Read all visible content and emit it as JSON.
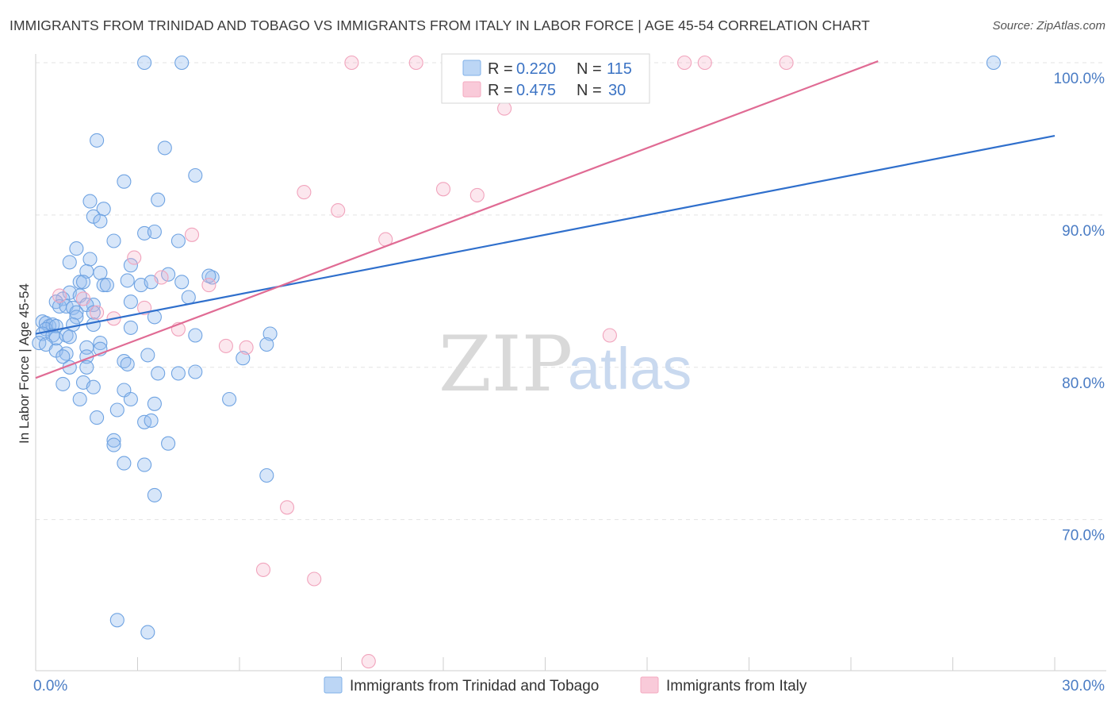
{
  "header": {
    "title": "IMMIGRANTS FROM TRINIDAD AND TOBAGO VS IMMIGRANTS FROM ITALY IN LABOR FORCE | AGE 45-54 CORRELATION CHART",
    "source": "Source: ZipAtlas.com"
  },
  "watermark": {
    "zip": "ZIP",
    "atlas": "atlas"
  },
  "legend": {
    "rows": [
      {
        "r_label": "R = ",
        "r_value": "0.220",
        "n_label": "N = ",
        "n_value": "115"
      },
      {
        "r_label": "R = ",
        "r_value": "0.475",
        "n_label": "N = ",
        "n_value": "30"
      }
    ]
  },
  "chart_data": {
    "type": "scatter",
    "ylabel": "In Labor Force | Age 45-54",
    "xlabel": "",
    "xlim": [
      0,
      30
    ],
    "ylim": [
      60.5,
      102
    ],
    "x_ticks": [
      {
        "value": 0,
        "label": "0.0%"
      },
      {
        "value": 30,
        "label": "30.0%"
      }
    ],
    "x_minor_ticks": [
      0,
      3,
      6,
      9,
      12,
      15,
      18,
      21,
      24,
      27,
      30
    ],
    "y_ticks": [
      {
        "value": 70,
        "label": "70.0%"
      },
      {
        "value": 80,
        "label": "80.0%"
      },
      {
        "value": 90,
        "label": "90.0%"
      },
      {
        "value": 100,
        "label": "100.0%"
      }
    ],
    "grid": true,
    "legend_position": "top-center",
    "series": [
      {
        "name": "Immigrants from Trinidad and Tobago",
        "color": "#7fb0e8",
        "line_color": "#2f6fcc",
        "r": 0.22,
        "n": 115,
        "trend": {
          "x": [
            0,
            30
          ],
          "y": [
            82.2,
            95.2
          ]
        },
        "points": [
          [
            3.2,
            100
          ],
          [
            4.3,
            100
          ],
          [
            28.2,
            100
          ],
          [
            1.8,
            94.9
          ],
          [
            3.8,
            94.4
          ],
          [
            4.7,
            92.6
          ],
          [
            2.6,
            92.2
          ],
          [
            1.6,
            90.9
          ],
          [
            3.6,
            91.0
          ],
          [
            2.0,
            90.4
          ],
          [
            1.7,
            89.9
          ],
          [
            1.9,
            89.6
          ],
          [
            3.2,
            88.8
          ],
          [
            3.5,
            88.9
          ],
          [
            2.3,
            88.3
          ],
          [
            4.2,
            88.3
          ],
          [
            1.2,
            87.8
          ],
          [
            1.0,
            86.9
          ],
          [
            1.6,
            87.1
          ],
          [
            2.8,
            86.7
          ],
          [
            1.5,
            86.3
          ],
          [
            1.9,
            86.2
          ],
          [
            3.9,
            86.1
          ],
          [
            5.2,
            85.9
          ],
          [
            5.1,
            86.0
          ],
          [
            1.3,
            85.6
          ],
          [
            1.4,
            85.6
          ],
          [
            2.0,
            85.4
          ],
          [
            2.1,
            85.4
          ],
          [
            2.7,
            85.7
          ],
          [
            3.1,
            85.4
          ],
          [
            3.4,
            85.6
          ],
          [
            4.3,
            85.6
          ],
          [
            1.0,
            84.9
          ],
          [
            1.3,
            84.7
          ],
          [
            0.8,
            84.5
          ],
          [
            0.6,
            84.3
          ],
          [
            2.8,
            84.3
          ],
          [
            4.5,
            84.6
          ],
          [
            0.7,
            84.0
          ],
          [
            0.9,
            84.0
          ],
          [
            1.1,
            83.9
          ],
          [
            1.7,
            84.1
          ],
          [
            1.5,
            84.1
          ],
          [
            1.2,
            83.6
          ],
          [
            1.2,
            83.3
          ],
          [
            1.7,
            83.6
          ],
          [
            3.5,
            83.3
          ],
          [
            0.2,
            83.0
          ],
          [
            0.3,
            82.9
          ],
          [
            0.4,
            82.7
          ],
          [
            0.5,
            82.8
          ],
          [
            0.3,
            82.5
          ],
          [
            0.6,
            82.7
          ],
          [
            1.1,
            82.8
          ],
          [
            1.7,
            82.8
          ],
          [
            2.8,
            82.6
          ],
          [
            0.2,
            82.2
          ],
          [
            0.5,
            82.1
          ],
          [
            0.6,
            81.9
          ],
          [
            0.9,
            82.1
          ],
          [
            1.0,
            82.0
          ],
          [
            4.7,
            82.1
          ],
          [
            6.9,
            82.2
          ],
          [
            0.1,
            81.6
          ],
          [
            0.3,
            81.5
          ],
          [
            0.6,
            81.1
          ],
          [
            1.5,
            81.3
          ],
          [
            1.9,
            81.6
          ],
          [
            1.9,
            81.2
          ],
          [
            6.8,
            81.5
          ],
          [
            0.9,
            80.9
          ],
          [
            0.8,
            80.7
          ],
          [
            1.5,
            80.7
          ],
          [
            2.6,
            80.4
          ],
          [
            2.7,
            80.2
          ],
          [
            3.3,
            80.8
          ],
          [
            6.1,
            80.6
          ],
          [
            1.0,
            80.0
          ],
          [
            1.5,
            80.0
          ],
          [
            3.6,
            79.6
          ],
          [
            4.2,
            79.6
          ],
          [
            4.7,
            79.7
          ],
          [
            0.8,
            78.9
          ],
          [
            1.4,
            79.0
          ],
          [
            1.7,
            78.7
          ],
          [
            2.6,
            78.5
          ],
          [
            2.8,
            77.9
          ],
          [
            3.5,
            77.6
          ],
          [
            5.7,
            77.9
          ],
          [
            1.3,
            77.9
          ],
          [
            1.8,
            76.7
          ],
          [
            2.4,
            77.2
          ],
          [
            3.2,
            76.4
          ],
          [
            3.4,
            76.5
          ],
          [
            2.3,
            75.2
          ],
          [
            2.3,
            74.9
          ],
          [
            3.9,
            75.0
          ],
          [
            2.6,
            73.7
          ],
          [
            3.2,
            73.6
          ],
          [
            6.8,
            72.9
          ],
          [
            3.5,
            71.6
          ],
          [
            2.4,
            63.4
          ],
          [
            3.3,
            62.6
          ]
        ]
      },
      {
        "name": "Immigrants from Italy",
        "color": "#f4a9c0",
        "line_color": "#e06b94",
        "r": 0.475,
        "n": 30,
        "trend": {
          "x": [
            0,
            24.8
          ],
          "y": [
            79.3,
            100.1
          ]
        },
        "points": [
          [
            9.3,
            100
          ],
          [
            11.2,
            100
          ],
          [
            16.5,
            100
          ],
          [
            19.1,
            100
          ],
          [
            19.7,
            100
          ],
          [
            22.1,
            100
          ],
          [
            13.8,
            97.0
          ],
          [
            7.9,
            91.5
          ],
          [
            12.0,
            91.7
          ],
          [
            13.0,
            91.3
          ],
          [
            8.9,
            90.3
          ],
          [
            4.6,
            88.7
          ],
          [
            10.3,
            88.4
          ],
          [
            2.9,
            87.2
          ],
          [
            3.7,
            85.9
          ],
          [
            5.1,
            85.4
          ],
          [
            1.4,
            84.5
          ],
          [
            0.7,
            84.7
          ],
          [
            3.2,
            83.9
          ],
          [
            1.8,
            83.6
          ],
          [
            2.3,
            83.2
          ],
          [
            4.2,
            82.5
          ],
          [
            5.6,
            81.4
          ],
          [
            6.2,
            81.3
          ],
          [
            16.9,
            82.1
          ],
          [
            7.4,
            70.8
          ],
          [
            6.7,
            66.7
          ],
          [
            8.2,
            66.1
          ],
          [
            9.8,
            60.7
          ]
        ]
      }
    ]
  }
}
